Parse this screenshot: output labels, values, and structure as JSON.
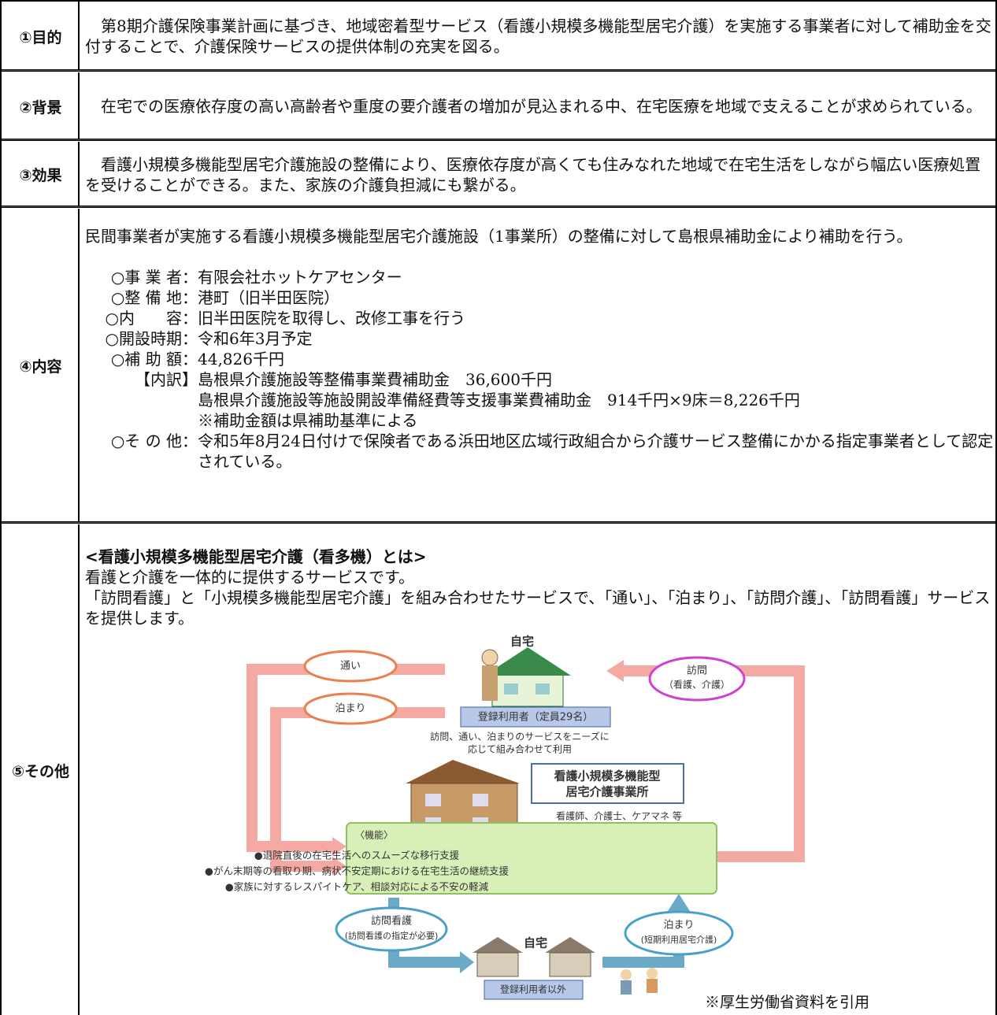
{
  "rows": [
    {
      "label": "①目的",
      "text": "第8期介護保険事業計画に基づき、地域密着型サービス（看護小規模多機能型居宅介護）を実施する事業者に対して補助金を交付することで、介護保険サービスの提供体制の充実を図る。"
    },
    {
      "label": "②背景",
      "text": "在宅での医療依存度の高い高齢者や重度の要介護者の増加が見込まれる中、在宅医療を地域で支えることが求められている。"
    },
    {
      "label": "③効果",
      "text": "看護小規模多機能型居宅介護施設の整備により、医療依存度が高くても住みなれた地域で在宅生活をしながら幅広い医療処置を受けることができる。また、家族の介護負担減にも繋がる。"
    },
    {
      "label": "④内容",
      "text": "民間事業者が実施する看護小規模多機能型居宅介護施設（1事業所）の整備に対して島根県補助金により補助を行う。",
      "items": [
        {
          "key": "○事 業 者：",
          "value": [
            "有限会社ホットケアセンター"
          ]
        },
        {
          "key": "○整 備 地：",
          "value": [
            "港町（旧半田医院）"
          ]
        },
        {
          "key": "○内　　容：",
          "value": [
            "旧半田医院を取得し、改修工事を行う"
          ]
        },
        {
          "key": "○開設時期：",
          "value": [
            "令和6年3月予定"
          ]
        },
        {
          "key": "○補 助 額：",
          "value": [
            "44,826千円"
          ]
        },
        {
          "key": "【内訳】",
          "value": [
            "島根県介護施設等整備事業費補助金　36,600千円",
            "島根県介護施設等施設開設準備経費等支援事業費補助金　914千円×9床＝8,226千円",
            "※補助金額は県補助基準による"
          ]
        },
        {
          "key": "○そ の 他：",
          "value": [
            "令和5年8月24日付けで保険者である浜田地区広域行政組合から介護サービス整備にかかる指定事業者として認定されている。"
          ]
        }
      ]
    },
    {
      "label": "⑤その他",
      "heading": "<看護小規模多機能型居宅介護（看多機）とは>",
      "paragraphs": [
        "看護と介護を一体的に提供するサービスです。",
        "「訪問看護」と「小規模多機能型居宅介護」を組み合わせたサービスで、「通い」、「泊まり」、「訪問介護」、「訪問看護」サービスを提供します。"
      ],
      "diagram": {
        "home_top": "自宅",
        "commute": "通い",
        "stay": "泊まり",
        "visit": [
          "訪問",
          "（看護、介護）"
        ],
        "registered": "登録利用者（定員29名）",
        "combine": [
          "訪問、通い、泊まりのサービスをニーズに",
          "応じて組み合わせて利用"
        ],
        "office": [
          "看護小規模多機能型",
          "居宅介護事業所"
        ],
        "staff": "看護師、介護士、ケアマネ 等",
        "functions_title": "〈機能〉",
        "functions": [
          "●退院直後の在宅生活へのスムーズな移行支援",
          "●がん末期等の看取り期、病状不安定期における在宅生活の継続支援",
          "●家族に対するレスパイトケア、相談対応による不安の軽減"
        ],
        "visit_nursing": [
          "訪問看護",
          "(訪問看護の指定が必要)"
        ],
        "short_stay": [
          "泊まり",
          "(短期利用居宅介護)"
        ],
        "home_bottom": "自宅",
        "non_registered": "登録利用者以外"
      },
      "source": "※厚生労働省資料を引用"
    }
  ]
}
